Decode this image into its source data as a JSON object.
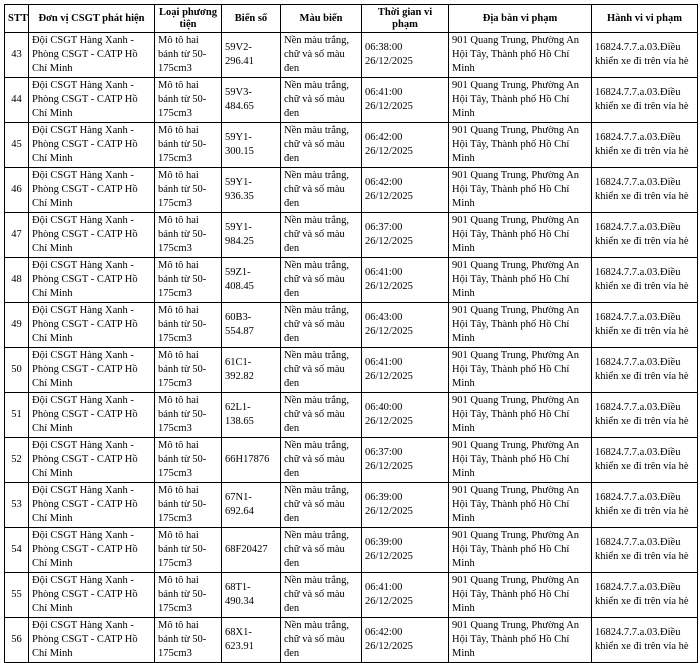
{
  "table": {
    "header": [
      "STT",
      "Đơn vị CSGT phát hiện",
      "Loại phương tiện",
      "Biển số",
      "Màu biển",
      "Thời gian vi phạm",
      "Địa bàn vi phạm",
      "Hành vi vi phạm"
    ],
    "rows": [
      [
        43,
        "Đội CSGT Hàng Xanh - Phòng CSGT - CATP Hồ Chí Minh",
        "Mô tô hai bánh từ 50-175cm3",
        "59V2-296.41",
        "Nền màu trắng, chữ và số màu đen",
        "06:38:00 26/12/2025",
        "901 Quang Trung, Phường An Hội Tây, Thành phố Hồ Chí Minh",
        "16824.7.7.a.03.Điều khiển xe đi trên vỉa hè"
      ],
      [
        44,
        "Đội CSGT Hàng Xanh - Phòng CSGT - CATP Hồ Chí Minh",
        "Mô tô hai bánh từ 50-175cm3",
        "59V3-484.65",
        "Nền màu trắng, chữ và số màu đen",
        "06:41:00 26/12/2025",
        "901 Quang Trung, Phường An Hội Tây, Thành phố Hồ Chí Minh",
        "16824.7.7.a.03.Điều khiển xe đi trên vỉa hè"
      ],
      [
        45,
        "Đội CSGT Hàng Xanh - Phòng CSGT - CATP Hồ Chí Minh",
        "Mô tô hai bánh từ 50-175cm3",
        "59Y1-300.15",
        "Nền màu trắng, chữ và số màu đen",
        "06:42:00 26/12/2025",
        "901 Quang Trung, Phường An Hội Tây, Thành phố Hồ Chí Minh",
        "16824.7.7.a.03.Điều khiển xe đi trên vỉa hè"
      ],
      [
        46,
        "Đội CSGT Hàng Xanh - Phòng CSGT - CATP Hồ Chí Minh",
        "Mô tô hai bánh từ 50-175cm3",
        "59Y1-936.35",
        "Nền màu trắng, chữ và số màu đen",
        "06:42:00 26/12/2025",
        "901 Quang Trung, Phường An Hội Tây, Thành phố Hồ Chí Minh",
        "16824.7.7.a.03.Điều khiển xe đi trên vỉa hè"
      ],
      [
        47,
        "Đội CSGT Hàng Xanh - Phòng CSGT - CATP Hồ Chí Minh",
        "Mô tô hai bánh từ 50-175cm3",
        "59Y1-984.25",
        "Nền màu trắng, chữ và số màu đen",
        "06:37:00 26/12/2025",
        "901 Quang Trung, Phường An Hội Tây, Thành phố Hồ Chí Minh",
        "16824.7.7.a.03.Điều khiển xe đi trên vỉa hè"
      ],
      [
        48,
        "Đội CSGT Hàng Xanh - Phòng CSGT - CATP Hồ Chí Minh",
        "Mô tô hai bánh từ 50-175cm3",
        "59Z1-408.45",
        "Nền màu trắng, chữ và số màu đen",
        "06:41:00 26/12/2025",
        "901 Quang Trung, Phường An Hội Tây, Thành phố Hồ Chí Minh",
        "16824.7.7.a.03.Điều khiển xe đi trên vỉa hè"
      ],
      [
        49,
        "Đội CSGT Hàng Xanh - Phòng CSGT - CATP Hồ Chí Minh",
        "Mô tô hai bánh từ 50-175cm3",
        "60B3-554.87",
        "Nền màu trắng, chữ và số màu đen",
        "06:43:00 26/12/2025",
        "901 Quang Trung, Phường An Hội Tây, Thành phố Hồ Chí Minh",
        "16824.7.7.a.03.Điều khiển xe đi trên vỉa hè"
      ],
      [
        50,
        "Đội CSGT Hàng Xanh - Phòng CSGT - CATP Hồ Chí Minh",
        "Mô tô hai bánh từ 50-175cm3",
        "61C1-392.82",
        "Nền màu trắng, chữ và số màu đen",
        "06:41:00 26/12/2025",
        "901 Quang Trung, Phường An Hội Tây, Thành phố Hồ Chí Minh",
        "16824.7.7.a.03.Điều khiển xe đi trên vỉa hè"
      ],
      [
        51,
        "Đội CSGT Hàng Xanh - Phòng CSGT - CATP Hồ Chí Minh",
        "Mô tô hai bánh từ 50-175cm3",
        "62L1-138.65",
        "Nền màu trắng, chữ và số màu đen",
        "06:40:00 26/12/2025",
        "901 Quang Trung, Phường An Hội Tây, Thành phố Hồ Chí Minh",
        "16824.7.7.a.03.Điều khiển xe đi trên vỉa hè"
      ],
      [
        52,
        "Đội CSGT Hàng Xanh - Phòng CSGT - CATP Hồ Chí Minh",
        "Mô tô hai bánh từ 50-175cm3",
        "66H17876",
        "Nền màu trắng, chữ và số màu đen",
        "06:37:00 26/12/2025",
        "901 Quang Trung, Phường An Hội Tây, Thành phố Hồ Chí Minh",
        "16824.7.7.a.03.Điều khiển xe đi trên vỉa hè"
      ],
      [
        53,
        "Đội CSGT Hàng Xanh - Phòng CSGT - CATP Hồ Chí Minh",
        "Mô tô hai bánh từ 50-175cm3",
        "67N1-692.64",
        "Nền màu trắng, chữ và số màu đen",
        "06:39:00 26/12/2025",
        "901 Quang Trung, Phường An Hội Tây, Thành phố Hồ Chí Minh",
        "16824.7.7.a.03.Điều khiển xe đi trên vỉa hè"
      ],
      [
        54,
        "Đội CSGT Hàng Xanh - Phòng CSGT - CATP Hồ Chí Minh",
        "Mô tô hai bánh từ 50-175cm3",
        "68F20427",
        "Nền màu trắng, chữ và số màu đen",
        "06:39:00 26/12/2025",
        "901 Quang Trung, Phường An Hội Tây, Thành phố Hồ Chí Minh",
        "16824.7.7.a.03.Điều khiển xe đi trên vỉa hè"
      ],
      [
        55,
        "Đội CSGT Hàng Xanh - Phòng CSGT - CATP Hồ Chí Minh",
        "Mô tô hai bánh từ 50-175cm3",
        "68T1-490.34",
        "Nền màu trắng, chữ và số màu đen",
        "06:41:00 26/12/2025",
        "901 Quang Trung, Phường An Hội Tây, Thành phố Hồ Chí Minh",
        "16824.7.7.a.03.Điều khiển xe đi trên vỉa hè"
      ],
      [
        56,
        "Đội CSGT Hàng Xanh - Phòng CSGT - CATP Hồ Chí Minh",
        "Mô tô hai bánh từ 50-175cm3",
        "68X1-623.91",
        "Nền màu trắng, chữ và số màu đen",
        "06:42:00 26/12/2025",
        "901 Quang Trung, Phường An Hội Tây, Thành phố Hồ Chí Minh",
        "16824.7.7.a.03.Điều khiển xe đi trên vỉa hè"
      ]
    ]
  }
}
